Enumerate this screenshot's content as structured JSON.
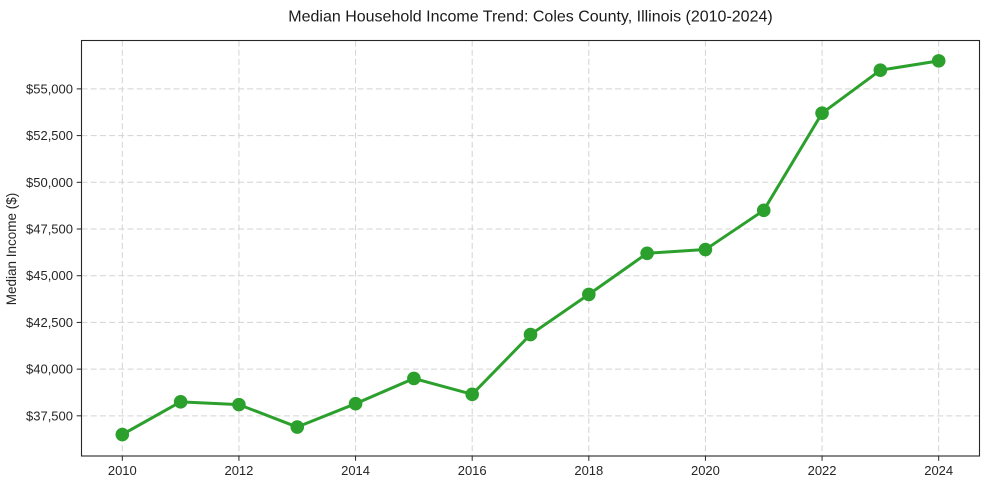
{
  "chart_data": {
    "type": "line",
    "title": "Median Household Income Trend: Coles County, Illinois (2010-2024)",
    "xlabel": "",
    "ylabel": "Median Income ($)",
    "series": [
      {
        "name": "Median household income",
        "x": [
          2010,
          2011,
          2012,
          2013,
          2014,
          2015,
          2016,
          2017,
          2018,
          2019,
          2020,
          2021,
          2022,
          2023,
          2024
        ],
        "values": [
          36500,
          38250,
          38100,
          36900,
          38150,
          39500,
          38650,
          41850,
          44000,
          46200,
          46400,
          48500,
          53700,
          56000,
          56500
        ]
      }
    ],
    "xlim": [
      2009.3,
      2024.7
    ],
    "ylim": [
      35350,
      57590
    ],
    "xticks": [
      {
        "v": 2010,
        "label": "2010"
      },
      {
        "v": 2012,
        "label": "2012"
      },
      {
        "v": 2014,
        "label": "2014"
      },
      {
        "v": 2016,
        "label": "2016"
      },
      {
        "v": 2018,
        "label": "2018"
      },
      {
        "v": 2020,
        "label": "2020"
      },
      {
        "v": 2022,
        "label": "2022"
      },
      {
        "v": 2024,
        "label": "2024"
      }
    ],
    "yticks": [
      {
        "v": 37500,
        "label": "$37,500"
      },
      {
        "v": 40000,
        "label": "$40,000"
      },
      {
        "v": 42500,
        "label": "$42,500"
      },
      {
        "v": 45000,
        "label": "$45,000"
      },
      {
        "v": 47500,
        "label": "$47,500"
      },
      {
        "v": 50000,
        "label": "$50,000"
      },
      {
        "v": 52500,
        "label": "$52,500"
      },
      {
        "v": 55000,
        "label": "$55,000"
      }
    ],
    "grid": true,
    "grid_style": "dashed",
    "legend_position": "none",
    "marker": "circle",
    "colors": {
      "line": "#2ca02c",
      "marker": "#2ca02c",
      "grid": "#d3d3d3",
      "spine": "#262626",
      "text": "#262626",
      "background": "#ffffff"
    }
  }
}
